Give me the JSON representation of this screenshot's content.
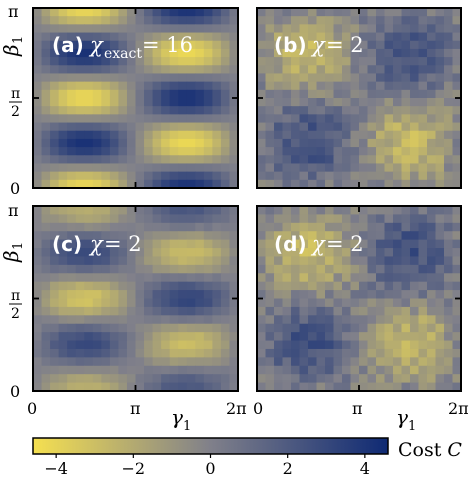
{
  "chart_data": [
    {
      "type": "heatmap",
      "panel_label": "(a)",
      "annotation": {
        "prefix": "χ",
        "subscript": "exact",
        "suffix": " = 16"
      },
      "grid": {
        "rows": 6,
        "cols": 16
      },
      "pattern": "cos(x_idx) * cos(y_idx), smooth",
      "values_note": "exact cost landscape"
    },
    {
      "type": "heatmap",
      "panel_label": "(b)",
      "annotation": {
        "prefix": "χ",
        "subscript": "",
        "suffix": " = 2"
      },
      "values_note": "noisy approximate landscape"
    },
    {
      "type": "heatmap",
      "panel_label": "(c)",
      "annotation": {
        "prefix": "χ",
        "subscript": "",
        "suffix": " = 2"
      },
      "values_note": "smooth approximate landscape"
    },
    {
      "type": "heatmap",
      "panel_label": "(d)",
      "annotation": {
        "prefix": "χ",
        "subscript": "",
        "suffix": " = 2"
      },
      "values_note": "noisy approximate landscape"
    }
  ],
  "axes": {
    "x_label": "γ",
    "x_label_sub": "1",
    "y_label": "β",
    "y_label_sub": "1",
    "x_ticks": [
      "0",
      "π",
      "2π"
    ],
    "x_ticks_right": [
      "0",
      "π",
      "2π"
    ],
    "y_ticks_top": "π",
    "y_ticks_mid": "π",
    "y_ticks_mid_den": "2",
    "y_ticks_bottom": "0"
  },
  "colorbar": {
    "label": "Cost C",
    "label_text": "Cost ",
    "label_var": "C",
    "ticks": [
      "−4",
      "−2",
      "0",
      "2",
      "4"
    ],
    "tick_values": [
      -4,
      -2,
      0,
      2,
      4
    ],
    "range": [
      -4.6,
      4.6
    ],
    "colors": {
      "low": "#f5e050",
      "mid": "#80808a",
      "high": "#0f2a74"
    }
  }
}
